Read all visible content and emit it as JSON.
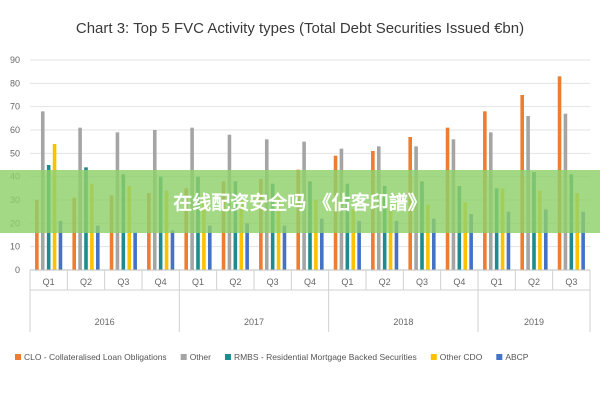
{
  "chart_data": {
    "type": "bar",
    "title": "Chart 3: Top 5 FVC Activity types (Total Debt Securities Issued €bn)",
    "xlabel": "",
    "ylabel": "",
    "ylim": [
      0,
      90
    ],
    "yticks": [
      0,
      10,
      20,
      30,
      40,
      50,
      60,
      70,
      80,
      90
    ],
    "grid": true,
    "legend_position": "bottom",
    "categories": [
      "Q1",
      "Q2",
      "Q3",
      "Q4",
      "Q1",
      "Q2",
      "Q3",
      "Q4",
      "Q1",
      "Q2",
      "Q3",
      "Q4",
      "Q1",
      "Q2",
      "Q3"
    ],
    "groups": [
      {
        "label": "2016",
        "count": 4
      },
      {
        "label": "2017",
        "count": 4
      },
      {
        "label": "2018",
        "count": 4
      },
      {
        "label": "2019",
        "count": 3
      }
    ],
    "series": [
      {
        "name": "CLO - Collateralised Loan Obligations",
        "color": "#ED7D31",
        "values": [
          30,
          31,
          32,
          33,
          35,
          38,
          39,
          43,
          49,
          51,
          57,
          61,
          68,
          75,
          83
        ]
      },
      {
        "name": "Other",
        "color": "#A5A5A5",
        "values": [
          68,
          61,
          59,
          60,
          61,
          58,
          56,
          55,
          52,
          53,
          53,
          56,
          59,
          66,
          67
        ]
      },
      {
        "name": "RMBS - Residential Mortgage Backed Securities",
        "color": "#1E8C8C",
        "values": [
          45,
          44,
          41,
          40,
          40,
          38,
          37,
          38,
          37,
          36,
          38,
          36,
          35,
          42,
          41
        ]
      },
      {
        "name": "Other CDO",
        "color": "#FFC000",
        "values": [
          54,
          37,
          36,
          34,
          32,
          30,
          31,
          30,
          26,
          26,
          28,
          29,
          35,
          34,
          33
        ]
      },
      {
        "name": "ABCP",
        "color": "#4472C4",
        "values": [
          21,
          19,
          16,
          17,
          19,
          20,
          19,
          22,
          21,
          21,
          22,
          24,
          25,
          26,
          25
        ]
      }
    ]
  },
  "overlay": {
    "text": "在线配资安全吗 《佔客印譜》",
    "color": "#8fd16a"
  }
}
